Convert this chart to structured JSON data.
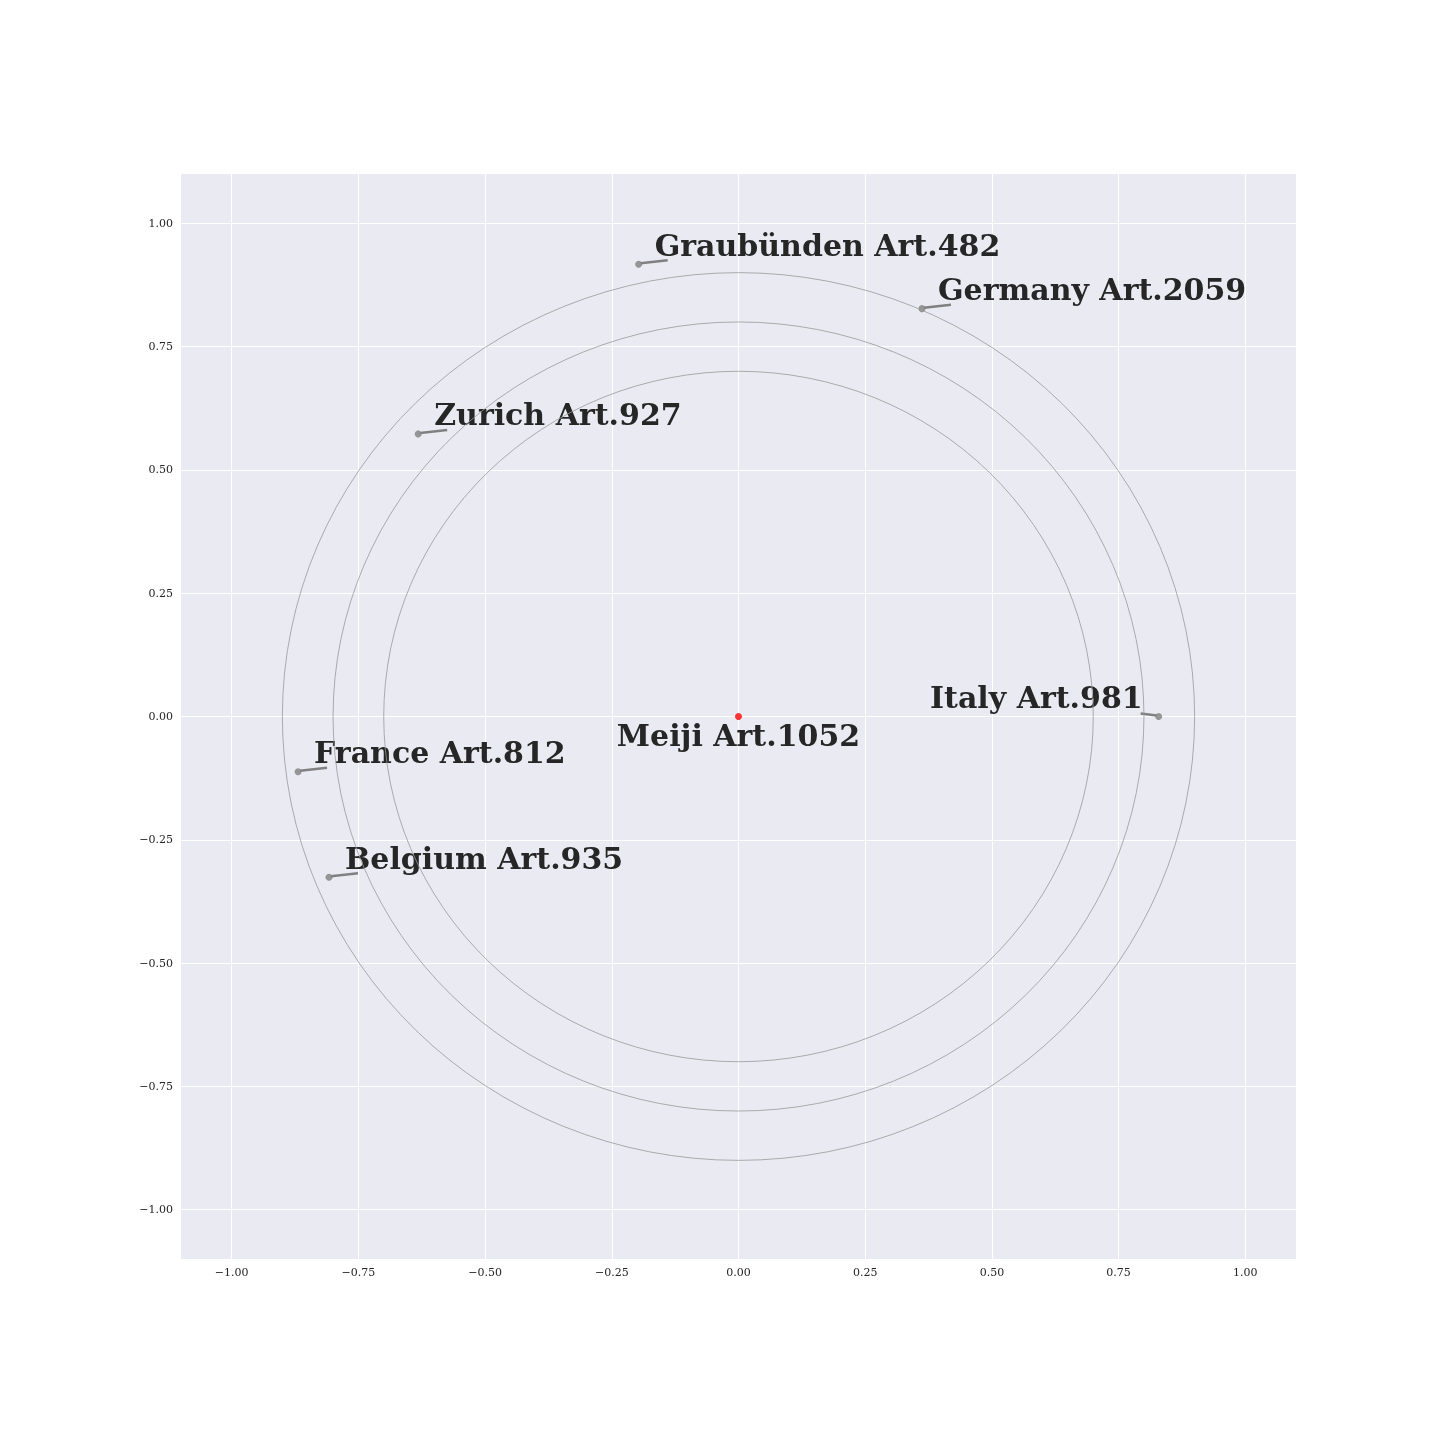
{
  "chart_data": {
    "type": "scatter",
    "xlim": [
      -1.1,
      1.1
    ],
    "ylim": [
      -1.1,
      1.1
    ],
    "xticks": [
      {
        "value": -1,
        "label": "−1.00"
      },
      {
        "value": -0.75,
        "label": "−0.75"
      },
      {
        "value": -0.5,
        "label": "−0.50"
      },
      {
        "value": -0.25,
        "label": "−0.25"
      },
      {
        "value": 0,
        "label": "0.00"
      },
      {
        "value": 0.25,
        "label": "0.25"
      },
      {
        "value": 0.5,
        "label": "0.50"
      },
      {
        "value": 0.75,
        "label": "0.75"
      },
      {
        "value": 1,
        "label": "1.00"
      }
    ],
    "yticks": [
      {
        "value": -1,
        "label": "−1.00"
      },
      {
        "value": -0.75,
        "label": "−0.75"
      },
      {
        "value": -0.5,
        "label": "−0.50"
      },
      {
        "value": -0.25,
        "label": "−0.25"
      },
      {
        "value": 0,
        "label": "0.00"
      },
      {
        "value": 0.25,
        "label": "0.25"
      },
      {
        "value": 0.5,
        "label": "0.50"
      },
      {
        "value": 0.75,
        "label": "0.75"
      },
      {
        "value": 1,
        "label": "1.00"
      }
    ],
    "grid": true,
    "marker": "circle",
    "series": [
      {
        "color": "#808080",
        "x": [
          -0.197,
          0.362,
          -0.632,
          0.829,
          -0.869,
          -0.808
        ],
        "values": [
          0.917,
          0.827,
          0.573,
          0.0,
          -0.112,
          -0.326
        ]
      },
      {
        "color": "#ff0000",
        "x": [
          0
        ],
        "values": [
          0
        ]
      }
    ],
    "annotations": [
      {
        "text": "Graubünden Art.482",
        "x": -0.197,
        "y": 0.917
      },
      {
        "text": "Germany Art.2059",
        "x": 0.362,
        "y": 0.827
      },
      {
        "text": "Zurich Art.927",
        "x": -0.632,
        "y": 0.573
      },
      {
        "text": "Italy Art.981",
        "x": 0.829,
        "y": 0.0
      },
      {
        "text": "France Art.812",
        "x": -0.869,
        "y": -0.112
      },
      {
        "text": "Belgium Art.935",
        "x": -0.808,
        "y": -0.326
      },
      {
        "text": "Meiji Art.1052",
        "x": 0,
        "y": 0
      }
    ]
  }
}
